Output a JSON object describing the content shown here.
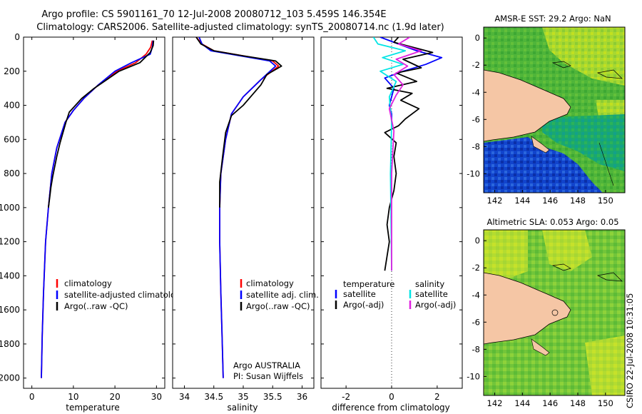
{
  "header": {
    "line1": "Argo profile: CS 5901161_70 12-Jul-2008 20080712_103 5.459S 146.354E",
    "line2": "Climatology: CARS2006. Satellite-adjusted climatology: synTS_20080714.nc (1.9d later)"
  },
  "side_stamp": "CSIRO 22-Jul-2008 10:31:05",
  "chart_data": [
    {
      "type": "line",
      "name": "temperature-profile",
      "xlabel": "temperature",
      "ylabel": "",
      "xlim": [
        -2,
        32
      ],
      "ylim": [
        2060,
        0
      ],
      "xticks": [
        "0",
        "10",
        "20",
        "30"
      ],
      "xtick_values": [
        0,
        10,
        20,
        30
      ],
      "yticks": [
        "0",
        "200",
        "400",
        "600",
        "800",
        "1000",
        "1200",
        "1400",
        "1600",
        "1800",
        "2000"
      ],
      "ytick_values": [
        0,
        200,
        400,
        600,
        800,
        1000,
        1200,
        1400,
        1600,
        1800,
        2000
      ],
      "legend": [
        "climatology",
        "satellite-adjusted climatology",
        "Argo(..raw -QC)"
      ],
      "series": [
        {
          "name": "climatology",
          "color": "#ff0000",
          "x": [
            29.0,
            28.6,
            27.5,
            25.0,
            20.5,
            16.0,
            12.5,
            10.0,
            8.0,
            6.0,
            4.8,
            4.0,
            3.3,
            2.8,
            2.5,
            2.3
          ],
          "y": [
            20,
            60,
            100,
            150,
            200,
            280,
            360,
            430,
            500,
            650,
            800,
            1000,
            1200,
            1500,
            1750,
            2000
          ]
        },
        {
          "name": "satellite-adjusted climatology",
          "color": "#0000ff",
          "x": [
            29.2,
            29.0,
            28.5,
            24.0,
            20.0,
            16.0,
            12.5,
            10.0,
            8.0,
            6.0,
            4.8,
            4.0,
            3.3,
            2.8,
            2.5,
            2.3
          ],
          "y": [
            20,
            60,
            100,
            150,
            200,
            280,
            360,
            430,
            500,
            650,
            800,
            1000,
            1200,
            1500,
            1750,
            2000
          ]
        },
        {
          "name": "Argo(..raw -QC)",
          "color": "#000000",
          "x": [
            29.3,
            29.2,
            28.5,
            26.0,
            21.0,
            18.0,
            15.0,
            12.0,
            9.0,
            8.2,
            7.5,
            6.8,
            6.0,
            5.5,
            5.0,
            4.6,
            4.3,
            4.0
          ],
          "y": [
            20,
            50,
            90,
            150,
            200,
            250,
            300,
            360,
            440,
            500,
            560,
            620,
            700,
            760,
            820,
            880,
            940,
            1000
          ]
        }
      ]
    },
    {
      "type": "line",
      "name": "salinity-profile",
      "xlabel": "salinity",
      "xlim": [
        33.8,
        36.2
      ],
      "ylim": [
        2060,
        0
      ],
      "xticks": [
        "34",
        "34.5",
        "35",
        "35.5",
        "36"
      ],
      "xtick_values": [
        34,
        34.5,
        35,
        35.5,
        36
      ],
      "legend": [
        "climatology",
        "satellite adj. clim.",
        "Argo(..raw -QC)"
      ],
      "annotation": [
        "Argo AUSTRALIA",
        "PI: Susan Wijffels"
      ],
      "series": [
        {
          "name": "climatology",
          "color": "#ff0000",
          "x": [
            34.2,
            34.3,
            34.5,
            35.0,
            35.5,
            35.6,
            35.3,
            35.0,
            34.8,
            34.7,
            34.62,
            34.6,
            34.6,
            34.62,
            34.64,
            34.66
          ],
          "y": [
            0,
            40,
            80,
            110,
            140,
            170,
            250,
            350,
            450,
            600,
            800,
            1000,
            1200,
            1500,
            1750,
            2000
          ]
        },
        {
          "name": "satellite adj. clim.",
          "color": "#0000ff",
          "x": [
            34.25,
            34.3,
            34.45,
            34.95,
            35.45,
            35.55,
            35.3,
            35.0,
            34.8,
            34.7,
            34.62,
            34.6,
            34.6,
            34.62,
            34.64,
            34.66
          ],
          "y": [
            0,
            40,
            80,
            110,
            140,
            170,
            250,
            350,
            450,
            600,
            800,
            1000,
            1200,
            1500,
            1750,
            2000
          ]
        },
        {
          "name": "Argo(..raw -QC)",
          "color": "#000000",
          "x": [
            34.2,
            34.28,
            34.5,
            35.0,
            35.55,
            35.65,
            35.4,
            35.3,
            35.15,
            35.0,
            34.8,
            34.7,
            34.65,
            34.6,
            34.6
          ],
          "y": [
            0,
            40,
            80,
            110,
            140,
            170,
            220,
            280,
            340,
            400,
            460,
            560,
            700,
            850,
            1000
          ]
        }
      ]
    },
    {
      "type": "line",
      "name": "difference-from-climatology",
      "xlabel": "difference from climatology",
      "xlim": [
        -3.1,
        3.1
      ],
      "ylim": [
        2060,
        0
      ],
      "xticks": [
        "-2",
        "0",
        "2"
      ],
      "xtick_values": [
        -2,
        0,
        2
      ],
      "legend_groups": [
        {
          "header": "temperature",
          "items": [
            "satellite",
            "Argo(-adj)"
          ]
        },
        {
          "header": "salinity",
          "items": [
            "satellite",
            "Argo(-adj)"
          ]
        }
      ],
      "series": [
        {
          "name": "temperature satellite",
          "color": "#0000ff",
          "x": [
            -0.5,
            0.3,
            1.1,
            2.2,
            1.5,
            0.5,
            -0.3,
            0.1,
            0.0,
            -0.1,
            0.0,
            0.0
          ],
          "y": [
            0,
            40,
            80,
            120,
            160,
            200,
            240,
            300,
            350,
            400,
            450,
            500
          ]
        },
        {
          "name": "temperature Argo(-adj)",
          "color": "#000000",
          "x": [
            0.3,
            0.1,
            1.8,
            0.5,
            1.3,
            0.2,
            1.1,
            -0.2,
            0.9,
            0.4,
            1.2,
            0.6,
            0.3,
            -0.3,
            0.2,
            0.1,
            0.2,
            0.1,
            -0.1,
            -0.2,
            -0.1,
            -0.3
          ],
          "y": [
            0,
            30,
            90,
            130,
            180,
            210,
            260,
            300,
            330,
            370,
            420,
            480,
            520,
            560,
            620,
            700,
            800,
            900,
            1000,
            1100,
            1200,
            1370
          ]
        },
        {
          "name": "salinity satellite",
          "color": "#00e5e5",
          "x": [
            -0.8,
            -0.6,
            0.6,
            -0.4,
            0.5,
            -0.5,
            0.2,
            -0.1,
            0.0,
            -0.05,
            0.0
          ],
          "y": [
            0,
            40,
            80,
            120,
            160,
            200,
            260,
            350,
            500,
            800,
            1370
          ]
        },
        {
          "name": "salinity Argo(-adj)",
          "color": "#e020e0",
          "x": [
            0.8,
            0.3,
            1.3,
            0.2,
            0.7,
            0.1,
            0.5,
            0.2,
            -0.1,
            0.1,
            0.0,
            0.0
          ],
          "y": [
            0,
            40,
            80,
            130,
            170,
            220,
            280,
            340,
            420,
            550,
            800,
            1370
          ]
        }
      ]
    }
  ],
  "maps": [
    {
      "title": "AMSR-E SST: 29.2 Argo: NaN",
      "xticks": [
        "142",
        "144",
        "146",
        "148",
        "150"
      ],
      "yticks": [
        "0",
        "-2",
        "-4",
        "-6",
        "-8",
        "-10"
      ]
    },
    {
      "title": "Altimetric SLA: 0.053 Argo: 0.05",
      "xticks": [
        "142",
        "144",
        "146",
        "148",
        "150"
      ],
      "yticks": [
        "0",
        "-2",
        "-4",
        "-6",
        "-8",
        "-10"
      ]
    }
  ]
}
